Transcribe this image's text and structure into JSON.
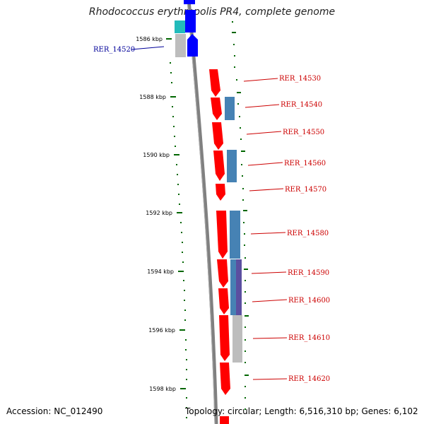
{
  "title": "Rhodococcus erythropolis PR4, complete genome",
  "accession": "Accession: NC_012490",
  "summary": "Topology: circular; Length: 6,516,310 bp; Genes: 6,102",
  "scale_labels": [
    "1586 kbp",
    "1588 kbp",
    "1590 kbp",
    "1592 kbp",
    "1594 kbp",
    "1596 kbp",
    "1598 kbp"
  ],
  "gene_labels": [
    "RER_14520",
    "RER_14530",
    "RER_14540",
    "RER_14550",
    "RER_14560",
    "RER_14570",
    "RER_14580",
    "RER_14590",
    "RER_14600",
    "RER_14610",
    "RER_14620"
  ],
  "colors": {
    "forward_strand": "#ff0000",
    "reverse_strand": "#0000ff",
    "label_forward": "#cc0000",
    "label_reverse": "#000099",
    "cog_blue": "#4682b4",
    "cog_purple": "#5b4fa0",
    "cog_gray": "#bdbdbd",
    "cog_cyan": "#22bbbb",
    "backbone": "#808080",
    "tick": "#006600"
  }
}
